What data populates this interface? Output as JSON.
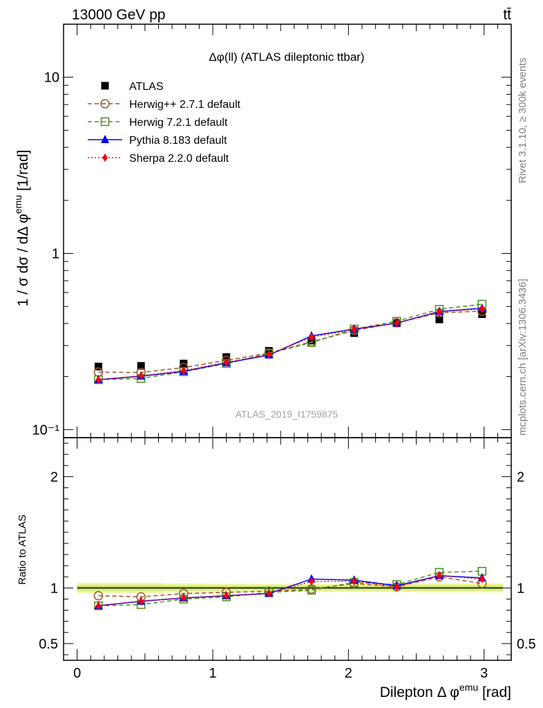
{
  "header": {
    "energy_label": "13000 GeV pp",
    "process_label": "tt̄"
  },
  "side_labels": {
    "rivet": "Rivet 3.1.10, ≥ 300k events",
    "mcplots": "mcplots.cern.ch [arXiv:1306.3436]"
  },
  "chart_data": [
    {
      "type": "line",
      "panel": "main",
      "title": "Δφ(ll) (ATLAS dileptonic ttbar)",
      "watermark": "ATLAS_2019_I1759875",
      "ylabel": "1 / σ  dσ / dΔ φ^emu [1/rad]",
      "yscale": "log",
      "ylim": [
        0.09,
        20
      ],
      "xlim": [
        -0.1,
        3.2
      ],
      "yticks": [
        {
          "value": 0.1,
          "label": "10⁻¹"
        },
        {
          "value": 1,
          "label": "1"
        },
        {
          "value": 10,
          "label": "10"
        }
      ],
      "legend_position": "top-left",
      "x": [
        0.157,
        0.471,
        0.785,
        1.1,
        1.414,
        1.728,
        2.042,
        2.356,
        2.67,
        2.985
      ],
      "series": [
        {
          "name": "ATLAS",
          "style": "data",
          "marker": "square-filled",
          "color": "#000000",
          "values": [
            0.228,
            0.23,
            0.237,
            0.258,
            0.28,
            0.32,
            0.353,
            0.402,
            0.422,
            0.452
          ]
        },
        {
          "name": "Herwig++ 2.7.1 default",
          "style": "dashed",
          "marker": "circle-open",
          "color": "#a0522d",
          "values": [
            0.212,
            0.211,
            0.225,
            0.247,
            0.272,
            0.315,
            0.365,
            0.404,
            0.46,
            0.47
          ]
        },
        {
          "name": "Herwig 7.2.1 default",
          "style": "dashed",
          "marker": "square-open",
          "color": "#4a8f1e",
          "values": [
            0.192,
            0.195,
            0.213,
            0.237,
            0.27,
            0.312,
            0.372,
            0.412,
            0.482,
            0.515
          ]
        },
        {
          "name": "Pythia 8.183 default",
          "style": "solid",
          "marker": "triangle-filled",
          "color": "#0000ff",
          "values": [
            0.192,
            0.201,
            0.214,
            0.239,
            0.265,
            0.34,
            0.372,
            0.402,
            0.468,
            0.488
          ]
        },
        {
          "name": "Sherpa 2.2.0 default",
          "style": "dotted",
          "marker": "diamond-filled",
          "color": "#ff0000",
          "values": [
            0.192,
            0.202,
            0.216,
            0.241,
            0.267,
            0.335,
            0.37,
            0.403,
            0.466,
            0.484
          ]
        }
      ]
    },
    {
      "type": "line",
      "panel": "ratio",
      "ylabel": "Ratio to ATLAS",
      "xlabel": "Dilepton Δ φ^emu [rad]",
      "ylim": [
        0.35,
        2.35
      ],
      "xlim": [
        -0.1,
        3.2
      ],
      "yticks": [
        {
          "value": 0.5,
          "label": "0.5"
        },
        {
          "value": 1,
          "label": "1"
        },
        {
          "value": 2,
          "label": "2"
        }
      ],
      "xticks": [
        {
          "value": 0,
          "label": "0"
        },
        {
          "value": 1,
          "label": "1"
        },
        {
          "value": 2,
          "label": "2"
        },
        {
          "value": 3,
          "label": "3"
        }
      ],
      "x": [
        0.157,
        0.471,
        0.785,
        1.1,
        1.414,
        1.728,
        2.042,
        2.356,
        2.67,
        2.985
      ],
      "band_outer": [
        0.045,
        0.045,
        0.04,
        0.038,
        0.035,
        0.035,
        0.035,
        0.035,
        0.04,
        0.04
      ],
      "band_inner": [
        0.025,
        0.025,
        0.022,
        0.02,
        0.02,
        0.02,
        0.02,
        0.02,
        0.022,
        0.022
      ],
      "series": [
        {
          "name": "Herwig++ 2.7.1 default",
          "style": "dashed",
          "marker": "circle-open",
          "color": "#a0522d",
          "values": [
            0.93,
            0.92,
            0.95,
            0.96,
            0.97,
            0.99,
            1.04,
            1.01,
            1.1,
            1.04
          ]
        },
        {
          "name": "Herwig 7.2.1 default",
          "style": "dashed",
          "marker": "square-open",
          "color": "#4a8f1e",
          "values": [
            0.84,
            0.85,
            0.9,
            0.92,
            0.96,
            0.98,
            1.05,
            1.03,
            1.14,
            1.15
          ]
        },
        {
          "name": "Pythia 8.183 default",
          "style": "solid",
          "marker": "triangle-filled",
          "color": "#0000ff",
          "values": [
            0.84,
            0.88,
            0.91,
            0.93,
            0.95,
            1.08,
            1.07,
            1.02,
            1.11,
            1.09
          ]
        },
        {
          "name": "Sherpa 2.2.0 default",
          "style": "dotted",
          "marker": "diamond-filled",
          "color": "#ff0000",
          "values": [
            0.84,
            0.88,
            0.91,
            0.93,
            0.95,
            1.06,
            1.06,
            1.01,
            1.11,
            1.08
          ]
        }
      ]
    }
  ]
}
